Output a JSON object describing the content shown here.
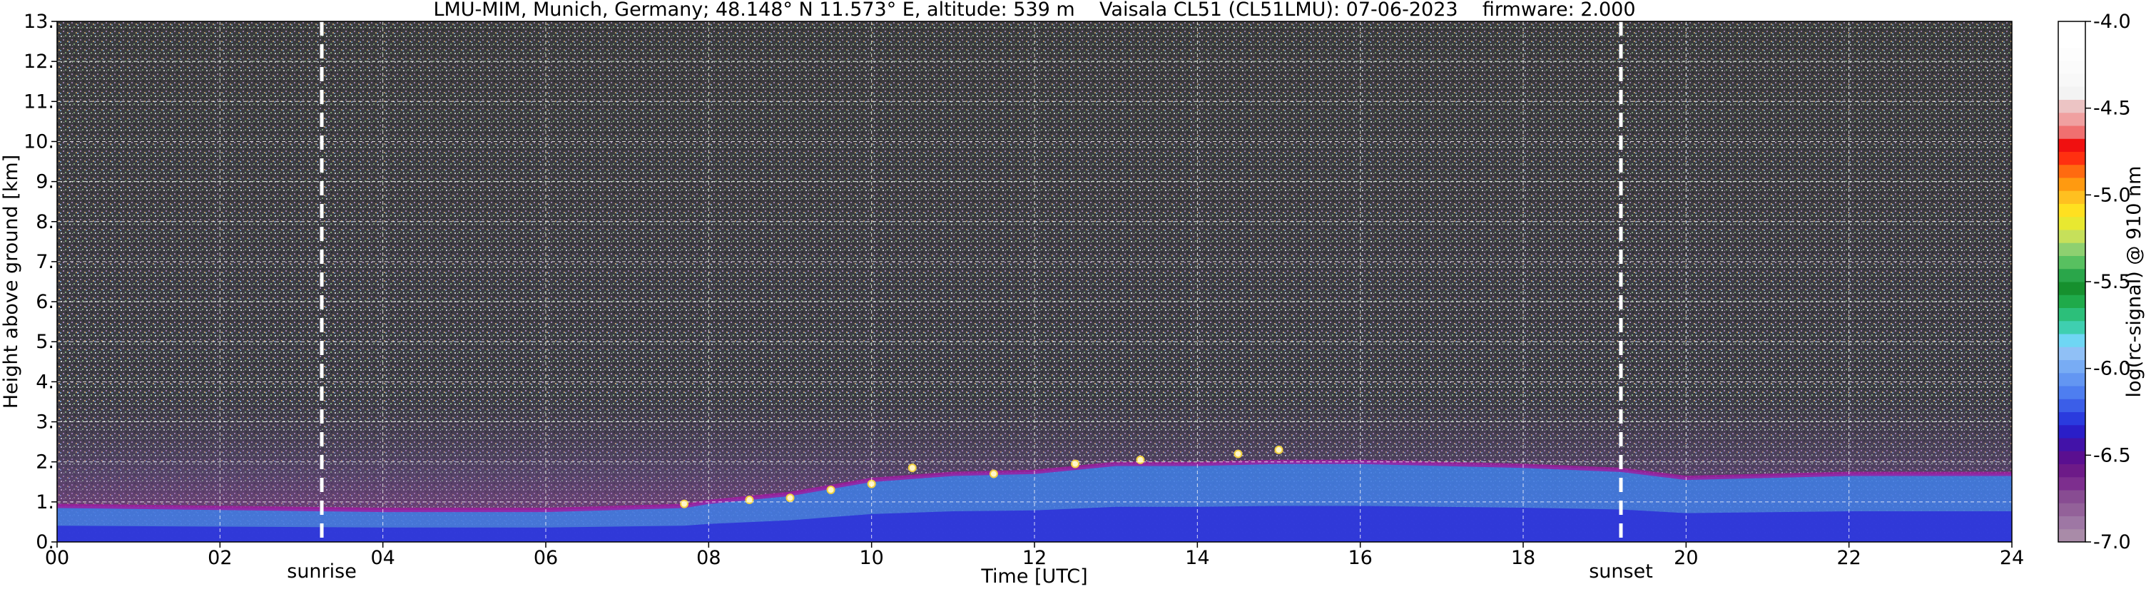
{
  "chart_data": {
    "type": "heatmap",
    "title": "LMU-MIM, Munich, Germany; 48.148° N 11.573° E, altitude: 539 m    Vaisala CL51 (CL51LMU): 07-06-2023    firmware: 2.000",
    "xlabel": "Time [UTC]",
    "ylabel": "Height above ground [km]",
    "xlim": [
      0,
      24
    ],
    "ylim": [
      0,
      13
    ],
    "x_ticks": [
      "00",
      "02",
      "04",
      "06",
      "08",
      "10",
      "12",
      "14",
      "16",
      "18",
      "20",
      "22",
      "24"
    ],
    "y_ticks": [
      "0.",
      "1.",
      "2.",
      "3.",
      "4.",
      "5.",
      "6.",
      "7.",
      "8.",
      "9.",
      "10.",
      "11.",
      "12.",
      "13."
    ],
    "grid": true,
    "colorbar": {
      "label": "log(rc-signal) @ 910 nm",
      "range": [
        -7.0,
        -4.0
      ],
      "ticks": [
        "-4.0",
        "-4.5",
        "-5.0",
        "-5.5",
        "-6.0",
        "-6.5",
        "-7.0"
      ]
    },
    "annotations": [
      {
        "text": "sunrise",
        "x": 3.25
      },
      {
        "text": "sunset",
        "x": 19.2
      }
    ],
    "layers": [
      {
        "name": "boundary-layer-top",
        "x": [
          0,
          2,
          4,
          6,
          7.7,
          8,
          9,
          10,
          11,
          12,
          13,
          14,
          15,
          16,
          18,
          19.2,
          20,
          22,
          24
        ],
        "y": [
          0.9,
          0.85,
          0.8,
          0.8,
          0.9,
          1.0,
          1.2,
          1.55,
          1.7,
          1.75,
          1.95,
          1.95,
          2.0,
          2.0,
          1.9,
          1.8,
          1.6,
          1.7,
          1.7
        ]
      },
      {
        "name": "cloud-base",
        "x": [
          7.7,
          8.5,
          9,
          9.5,
          10,
          10.5,
          11.5,
          12.5,
          13.3,
          14.5,
          15
        ],
        "y": [
          0.95,
          1.05,
          1.1,
          1.3,
          1.45,
          1.85,
          1.7,
          1.95,
          2.05,
          2.2,
          2.3
        ]
      }
    ]
  }
}
